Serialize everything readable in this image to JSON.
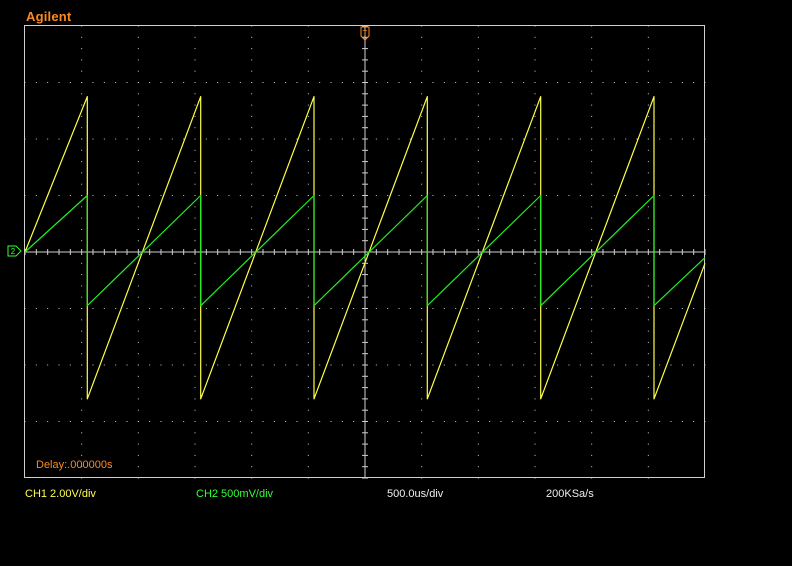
{
  "brand": "Agilent",
  "status": {
    "ch1": "CH1 2.00V/div",
    "ch2": "CH2 500mV/div",
    "timebase": "500.0us/div",
    "sample_rate": "200KSa/s",
    "delay": "Delay:.000000s"
  },
  "colors": {
    "ch1": "#ffff44",
    "ch2": "#22ee22",
    "grid": "#cfcfcf",
    "accent": "#ff8a1e"
  },
  "chart_data": {
    "type": "line",
    "xlabel": "",
    "ylabel": "",
    "grid": true,
    "divisions": {
      "x": 12,
      "y": 8
    },
    "xlim_div": [
      -6,
      6
    ],
    "ylim_div": [
      -4,
      4
    ],
    "series": [
      {
        "name": "CH1",
        "x_div": [
          -6.0,
          -4.9,
          -4.9,
          -2.9,
          -2.9,
          -0.9,
          -0.9,
          1.1,
          1.1,
          3.1,
          3.1,
          5.1,
          5.1,
          6.0
        ],
        "y_div": [
          0.0,
          2.75,
          -2.6,
          2.75,
          -2.6,
          2.75,
          -2.6,
          2.75,
          -2.6,
          2.75,
          -2.6,
          2.75,
          -2.6,
          -0.2
        ]
      },
      {
        "name": "CH2",
        "x_div": [
          -6.0,
          -4.9,
          -4.9,
          -2.9,
          -2.9,
          -0.9,
          -0.9,
          1.1,
          1.1,
          3.1,
          3.1,
          5.1,
          5.1,
          6.0
        ],
        "y_div": [
          0.0,
          1.0,
          -0.95,
          1.0,
          -0.95,
          1.0,
          -0.95,
          1.0,
          -0.95,
          1.0,
          -0.95,
          1.0,
          -0.95,
          -0.1
        ]
      }
    ]
  }
}
